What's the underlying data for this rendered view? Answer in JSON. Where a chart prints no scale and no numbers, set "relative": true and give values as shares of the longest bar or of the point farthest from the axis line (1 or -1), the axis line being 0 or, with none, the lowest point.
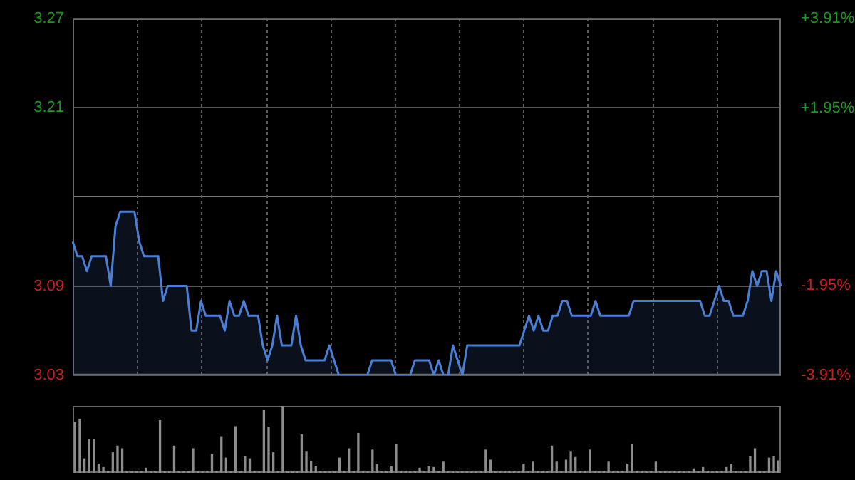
{
  "chart_data": [
    {
      "type": "area",
      "categories": [
        null,
        null,
        null,
        null,
        null,
        null,
        null,
        null,
        null,
        null,
        null,
        null,
        null,
        null,
        null,
        null,
        null,
        null,
        null,
        null,
        null,
        null,
        null,
        null,
        null,
        null,
        null,
        null,
        null,
        null,
        null,
        null,
        null,
        null,
        null,
        null,
        null,
        null,
        null,
        null,
        null,
        null,
        null,
        null,
        null,
        null,
        null,
        null,
        null,
        null,
        null,
        null,
        null,
        null,
        null,
        null,
        null,
        null,
        null,
        null,
        null,
        null,
        null,
        null,
        null,
        null,
        null,
        null,
        null,
        null,
        null,
        null,
        null,
        null,
        null,
        null,
        null,
        null,
        null,
        null,
        null,
        null,
        null,
        null,
        null,
        null,
        null,
        null,
        null,
        null,
        null,
        null,
        null,
        null,
        null,
        null,
        null,
        null,
        null,
        null,
        null,
        null,
        null,
        null,
        null,
        null,
        null,
        null,
        null,
        null,
        null,
        null,
        null,
        null,
        null,
        null,
        null,
        null,
        null,
        null,
        null,
        null,
        null,
        null,
        null,
        null,
        null,
        null,
        null,
        null,
        null,
        null,
        null,
        null,
        null,
        null,
        null,
        null,
        null,
        null,
        null,
        null,
        null,
        null,
        null,
        null,
        null,
        null,
        null,
        null
      ],
      "series": [
        {
          "color": "#4a7fd6",
          "values": [
            3.12,
            3.11,
            3.11,
            3.1,
            3.11,
            3.11,
            3.11,
            3.11,
            3.09,
            3.13,
            3.14,
            3.14,
            3.14,
            3.14,
            3.12,
            3.11,
            3.11,
            3.11,
            3.11,
            3.08,
            3.09,
            3.09,
            3.09,
            3.09,
            3.09,
            3.06,
            3.06,
            3.08,
            3.07,
            3.07,
            3.07,
            3.07,
            3.06,
            3.08,
            3.07,
            3.07,
            3.08,
            3.07,
            3.07,
            3.07,
            3.05,
            3.04,
            3.05,
            3.07,
            3.05,
            3.05,
            3.05,
            3.07,
            3.05,
            3.04,
            3.04,
            3.04,
            3.04,
            3.04,
            3.05,
            3.04,
            3.03,
            3.03,
            3.03,
            3.03,
            3.03,
            3.03,
            3.03,
            3.04,
            3.04,
            3.04,
            3.04,
            3.04,
            3.03,
            3.03,
            3.03,
            3.03,
            3.04,
            3.04,
            3.04,
            3.04,
            3.03,
            3.04,
            3.03,
            3.03,
            3.05,
            3.04,
            3.03,
            3.05,
            3.05,
            3.05,
            3.05,
            3.05,
            3.05,
            3.05,
            3.05,
            3.05,
            3.05,
            3.05,
            3.05,
            3.06,
            3.07,
            3.06,
            3.07,
            3.06,
            3.06,
            3.07,
            3.07,
            3.08,
            3.08,
            3.07,
            3.07,
            3.07,
            3.07,
            3.07,
            3.08,
            3.07,
            3.07,
            3.07,
            3.07,
            3.07,
            3.07,
            3.07,
            3.08,
            3.08,
            3.08,
            3.08,
            3.08,
            3.08,
            3.08,
            3.08,
            3.08,
            3.08,
            3.08,
            3.08,
            3.08,
            3.08,
            3.08,
            3.07,
            3.07,
            3.08,
            3.09,
            3.08,
            3.08,
            3.07,
            3.07,
            3.07,
            3.08,
            3.1,
            3.09,
            3.1,
            3.1,
            3.08,
            3.1,
            3.09
          ]
        }
      ],
      "ylim": [
        3.03,
        3.27
      ],
      "yticks": [
        3.03,
        3.09,
        {
          "value": 3.15,
          "label": null
        },
        3.21,
        3.27
      ],
      "y2lim": [
        -3.91,
        3.91
      ],
      "y2ticks": [
        {
          "value": -3.91,
          "label": "-3.91%"
        },
        {
          "value": -1.95,
          "label": "-1.95%"
        },
        {
          "value": 0,
          "label": null
        },
        {
          "value": 1.95,
          "label": "+1.95%"
        },
        {
          "value": 3.91,
          "label": "+3.91%"
        }
      ],
      "tick_labels": "y",
      "grid": true,
      "legend": false
    },
    {
      "type": "bar",
      "relative": true,
      "categories": [
        null,
        null,
        null,
        null,
        null,
        null,
        null,
        null,
        null,
        null,
        null,
        null,
        null,
        null,
        null,
        null,
        null,
        null,
        null,
        null,
        null,
        null,
        null,
        null,
        null,
        null,
        null,
        null,
        null,
        null,
        null,
        null,
        null,
        null,
        null,
        null,
        null,
        null,
        null,
        null,
        null,
        null,
        null,
        null,
        null,
        null,
        null,
        null,
        null,
        null,
        null,
        null,
        null,
        null,
        null,
        null,
        null,
        null,
        null,
        null,
        null,
        null,
        null,
        null,
        null,
        null,
        null,
        null,
        null,
        null,
        null,
        null,
        null,
        null,
        null,
        null,
        null,
        null,
        null,
        null,
        null,
        null,
        null,
        null,
        null,
        null,
        null,
        null,
        null,
        null,
        null,
        null,
        null,
        null,
        null,
        null,
        null,
        null,
        null,
        null,
        null,
        null,
        null,
        null,
        null,
        null,
        null,
        null,
        null,
        null,
        null,
        null,
        null,
        null,
        null,
        null,
        null,
        null,
        null,
        null,
        null,
        null,
        null,
        null,
        null,
        null,
        null,
        null,
        null,
        null,
        null,
        null,
        null,
        null,
        null,
        null,
        null,
        null,
        null,
        null,
        null,
        null,
        null,
        null,
        null,
        null,
        null,
        null,
        null,
        null
      ],
      "color": "#8c8c8c",
      "values": [
        0.75,
        0.8,
        0.21,
        0.5,
        0.5,
        0.13,
        0.08,
        0.02,
        0.3,
        0.4,
        0.36,
        0.02,
        0.02,
        0.02,
        0.02,
        0.07,
        0.02,
        0.02,
        0.78,
        0.02,
        0.02,
        0.4,
        0.02,
        0.02,
        0.02,
        0.36,
        0.02,
        0.02,
        0.02,
        0.27,
        0.02,
        0.54,
        0.22,
        0.02,
        0.69,
        0.02,
        0.24,
        0.21,
        0.02,
        0.02,
        0.93,
        0.68,
        0.3,
        0.02,
        1,
        0.02,
        0.02,
        0.02,
        0.57,
        0.32,
        0.17,
        0.09,
        0.02,
        0.02,
        0.02,
        0.02,
        0.22,
        0.02,
        0.36,
        0.02,
        0.59,
        0.02,
        0.02,
        0.34,
        0.13,
        0.02,
        0.02,
        0.09,
        0.42,
        0.02,
        0.02,
        0.02,
        0.02,
        0.07,
        0.02,
        0.09,
        0.08,
        0.02,
        0.16,
        0.02,
        0.02,
        0.02,
        0.02,
        0.02,
        0.02,
        0.02,
        0.02,
        0.34,
        0.19,
        0.02,
        0.02,
        0.02,
        0.02,
        0.02,
        0.02,
        0.13,
        0.02,
        0.16,
        0.02,
        0.02,
        0.02,
        0.4,
        0.16,
        0.02,
        0.19,
        0.32,
        0.23,
        0.02,
        0.02,
        0.34,
        0.02,
        0.02,
        0.02,
        0.16,
        0.02,
        0.02,
        0.02,
        0.13,
        0.42,
        0.02,
        0.02,
        0.02,
        0.02,
        0.16,
        0.02,
        0.02,
        0.02,
        0.02,
        0.02,
        0.02,
        0.02,
        0.06,
        0.02,
        0.08,
        0.02,
        0.02,
        0.02,
        0.02,
        0.08,
        0.12,
        0.02,
        0.02,
        0.02,
        0.24,
        0.36,
        0.02,
        0.02,
        0.22,
        0.24,
        0.18
      ],
      "legend": false
    }
  ]
}
